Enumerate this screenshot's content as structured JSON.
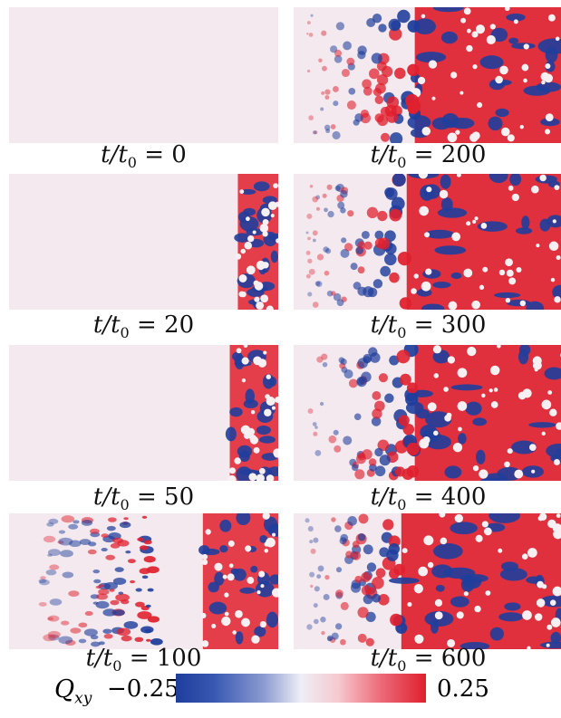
{
  "panels": [
    {
      "label": "t/t₀ = 0",
      "time": 0,
      "front": 1.0,
      "disorder": 0
    },
    {
      "label": "t/t₀ = 20",
      "time": 20,
      "front": 0.85,
      "disorder": 0
    },
    {
      "label": "t/t₀ = 50",
      "time": 50,
      "front": 0.82,
      "disorder": 0
    },
    {
      "label": "t/t₀ = 100",
      "time": 100,
      "front": 0.72,
      "disorder": 1
    },
    {
      "label": "t/t₀ = 200",
      "time": 200,
      "front": 0.45,
      "disorder": 2
    },
    {
      "label": "t/t₀ = 300",
      "time": 300,
      "front": 0.42,
      "disorder": 2
    },
    {
      "label": "t/t₀ = 400",
      "time": 400,
      "front": 0.45,
      "disorder": 2
    },
    {
      "label": "t/t₀ = 600",
      "time": 600,
      "front": 0.4,
      "disorder": 2
    }
  ],
  "colorbar": {
    "title": "Q_xy",
    "min_label": "−0.25",
    "max_label": "0.25",
    "colors": {
      "negative": "#1f3e9c",
      "neutral": "#f3e9ee",
      "positive": "#e0202e"
    }
  }
}
